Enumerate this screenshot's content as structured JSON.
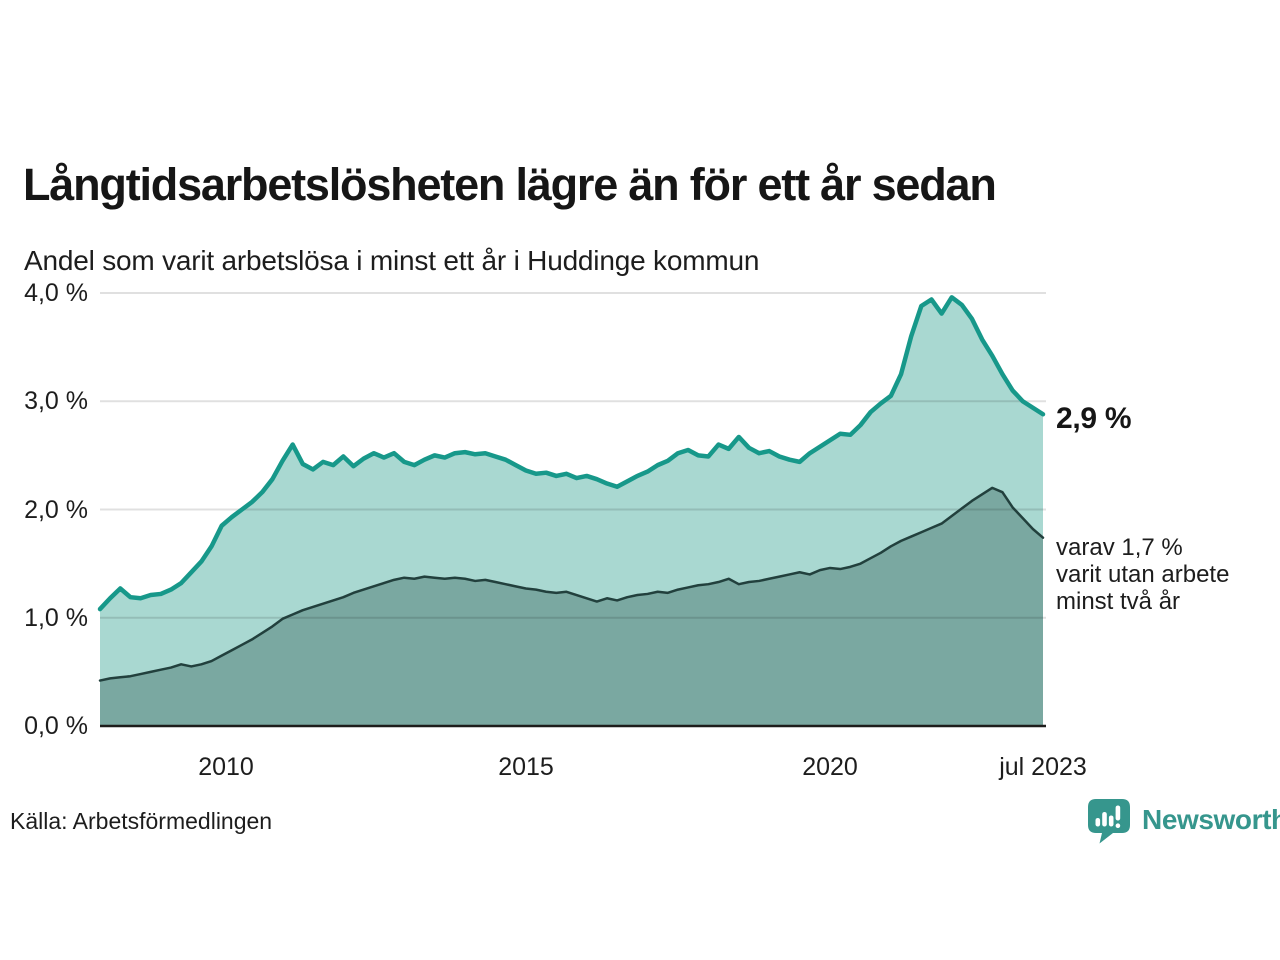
{
  "colors": {
    "background": "#ffffff",
    "text": "#1a1a1a",
    "grid": "rgba(0,0,0,0.12)",
    "axis": "#1d1d1b",
    "accent_teal_line": "#17988a",
    "light_area_fill": "#a9d8d1",
    "dark_area_fill": "#7aa8a1",
    "dark_series_line": "#22403d",
    "brand": "#36968d"
  },
  "footer": {
    "brand": "Newsworthy"
  },
  "chart_data": {
    "type": "area",
    "title": "Långtidsarbetslösheten lägre än för ett år sedan",
    "subtitle": "Andel som varit arbetslösa i minst ett år i Huddinge kommun",
    "source": "Källa: Arbetsförmedlingen",
    "unit": "%",
    "grid": true,
    "legend_position": "none",
    "ylim": [
      0,
      4.2
    ],
    "x_start_year": 2008.0,
    "x_step_years": 0.16667,
    "x_end_label": "jul 2023",
    "yticks": [
      {
        "label": "4,0 %",
        "value": 4.0
      },
      {
        "label": "3,0 %",
        "value": 3.0
      },
      {
        "label": "2,0 %",
        "value": 2.0
      },
      {
        "label": "1,0 %",
        "value": 1.0
      },
      {
        "label": "0,0 %",
        "value": 0.0
      }
    ],
    "xticks": [
      {
        "label": "2010",
        "year": 2010
      },
      {
        "label": "2015",
        "year": 2015
      },
      {
        "label": "2020",
        "year": 2020
      },
      {
        "label": "jul 2023",
        "year": 2023.5
      }
    ],
    "series": [
      {
        "name": "Andel som varit arbetslösa i minst ett år",
        "end_label": "2,9 %",
        "latest_value": 2.9,
        "line": "#17988a",
        "fill": "#a9d8d1",
        "width": 4.5,
        "values": [
          1.08,
          1.18,
          1.27,
          1.19,
          1.18,
          1.21,
          1.22,
          1.26,
          1.32,
          1.42,
          1.52,
          1.66,
          1.85,
          1.93,
          2.0,
          2.07,
          2.16,
          2.28,
          2.45,
          2.6,
          2.42,
          2.37,
          2.44,
          2.41,
          2.49,
          2.4,
          2.47,
          2.52,
          2.48,
          2.52,
          2.44,
          2.41,
          2.46,
          2.5,
          2.48,
          2.52,
          2.53,
          2.51,
          2.52,
          2.49,
          2.46,
          2.41,
          2.36,
          2.33,
          2.34,
          2.31,
          2.33,
          2.29,
          2.31,
          2.28,
          2.24,
          2.21,
          2.26,
          2.31,
          2.35,
          2.41,
          2.45,
          2.52,
          2.55,
          2.5,
          2.49,
          2.6,
          2.56,
          2.67,
          2.57,
          2.52,
          2.54,
          2.49,
          2.46,
          2.44,
          2.52,
          2.58,
          2.64,
          2.7,
          2.69,
          2.78,
          2.9,
          2.98,
          3.05,
          3.25,
          3.6,
          3.88,
          3.94,
          3.81,
          3.96,
          3.89,
          3.76,
          3.57,
          3.42,
          3.25,
          3.1,
          3.0,
          2.94,
          2.88
        ]
      },
      {
        "name": "varav utan arbete minst två år",
        "end_label": "varav 1,7 %\nvarit utan arbete\nminst två år",
        "latest_value": 1.7,
        "line": "#22403d",
        "fill": "#7aa8a1",
        "width": 2.5,
        "values": [
          0.42,
          0.44,
          0.45,
          0.46,
          0.48,
          0.5,
          0.52,
          0.54,
          0.57,
          0.55,
          0.57,
          0.6,
          0.65,
          0.7,
          0.75,
          0.8,
          0.86,
          0.92,
          0.99,
          1.03,
          1.07,
          1.1,
          1.13,
          1.16,
          1.19,
          1.23,
          1.26,
          1.29,
          1.32,
          1.35,
          1.37,
          1.36,
          1.38,
          1.37,
          1.36,
          1.37,
          1.36,
          1.34,
          1.35,
          1.33,
          1.31,
          1.29,
          1.27,
          1.26,
          1.24,
          1.23,
          1.24,
          1.21,
          1.18,
          1.15,
          1.18,
          1.16,
          1.19,
          1.21,
          1.22,
          1.24,
          1.23,
          1.26,
          1.28,
          1.3,
          1.31,
          1.33,
          1.36,
          1.31,
          1.33,
          1.34,
          1.36,
          1.38,
          1.4,
          1.42,
          1.4,
          1.44,
          1.46,
          1.45,
          1.47,
          1.5,
          1.55,
          1.6,
          1.66,
          1.71,
          1.75,
          1.79,
          1.83,
          1.87,
          1.94,
          2.01,
          2.08,
          2.14,
          2.2,
          2.16,
          2.02,
          1.92,
          1.82,
          1.74
        ]
      }
    ],
    "annotations": [
      {
        "text": "2,9 %",
        "bold": true
      },
      {
        "text": "varav 1,7 %\nvarit utan arbete\nminst två år",
        "bold": false
      }
    ]
  }
}
